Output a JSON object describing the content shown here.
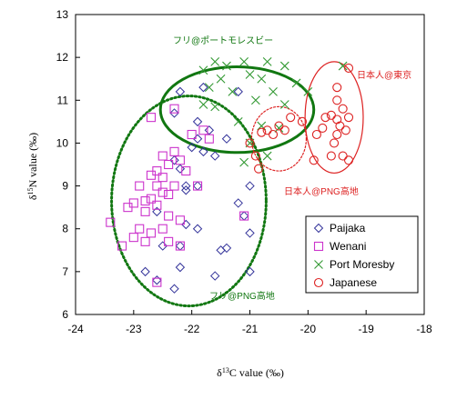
{
  "chart_data": {
    "type": "scatter",
    "xlabel": "δ13C value (‰)",
    "ylabel": "δ15N value (‰)",
    "xlim": [
      -24,
      -18
    ],
    "ylim": [
      6,
      13
    ],
    "xticks": [
      "-24",
      "-23",
      "-22",
      "-21",
      "-20",
      "-19",
      "-18"
    ],
    "yticks": [
      "6",
      "7",
      "8",
      "9",
      "10",
      "11",
      "12",
      "13"
    ],
    "grid": false,
    "legend_position": "bottom-right",
    "colors": {
      "Paijaka": "#33339a",
      "Wenani": "#cc33cc",
      "Port Moresby": "#339933",
      "Japanese": "#dd2222",
      "green_annotation": "#117711",
      "red_annotation": "#dd2222"
    },
    "series": [
      {
        "name": "Paijaka",
        "marker": "diamond",
        "points": [
          [
            -22.3,
            10.7
          ],
          [
            -22.2,
            11.2
          ],
          [
            -21.8,
            11.3
          ],
          [
            -21.2,
            11.2
          ],
          [
            -21.9,
            10.5
          ],
          [
            -21.9,
            10.1
          ],
          [
            -21.7,
            10.3
          ],
          [
            -21.4,
            10.1
          ],
          [
            -22.0,
            9.9
          ],
          [
            -21.8,
            9.8
          ],
          [
            -21.6,
            9.7
          ],
          [
            -22.3,
            9.6
          ],
          [
            -22.2,
            9.4
          ],
          [
            -22.1,
            9.0
          ],
          [
            -21.9,
            9.0
          ],
          [
            -22.1,
            8.9
          ],
          [
            -21.2,
            8.6
          ],
          [
            -21.0,
            9.0
          ],
          [
            -22.6,
            8.4
          ],
          [
            -22.1,
            8.1
          ],
          [
            -21.9,
            8.0
          ],
          [
            -21.1,
            8.3
          ],
          [
            -22.5,
            7.6
          ],
          [
            -22.2,
            7.6
          ],
          [
            -21.5,
            7.5
          ],
          [
            -21.4,
            7.55
          ],
          [
            -21.0,
            7.9
          ],
          [
            -22.2,
            7.1
          ],
          [
            -22.8,
            7.0
          ],
          [
            -22.6,
            6.8
          ],
          [
            -21.6,
            6.9
          ],
          [
            -22.3,
            6.6
          ],
          [
            -21.0,
            7.0
          ]
        ]
      },
      {
        "name": "Wenani",
        "marker": "square",
        "points": [
          [
            -22.7,
            10.6
          ],
          [
            -22.3,
            10.8
          ],
          [
            -22.0,
            10.2
          ],
          [
            -21.8,
            10.3
          ],
          [
            -21.7,
            10.1
          ],
          [
            -22.3,
            9.8
          ],
          [
            -22.5,
            9.7
          ],
          [
            -22.2,
            9.6
          ],
          [
            -22.4,
            9.5
          ],
          [
            -22.1,
            9.35
          ],
          [
            -22.6,
            9.35
          ],
          [
            -22.7,
            9.25
          ],
          [
            -22.5,
            9.2
          ],
          [
            -22.9,
            9.0
          ],
          [
            -22.6,
            9.0
          ],
          [
            -22.3,
            9.0
          ],
          [
            -21.9,
            9.0
          ],
          [
            -22.5,
            8.85
          ],
          [
            -22.4,
            8.8
          ],
          [
            -22.7,
            8.7
          ],
          [
            -23.0,
            8.6
          ],
          [
            -22.8,
            8.65
          ],
          [
            -22.6,
            8.55
          ],
          [
            -23.1,
            8.5
          ],
          [
            -22.8,
            8.4
          ],
          [
            -22.4,
            8.3
          ],
          [
            -22.2,
            8.2
          ],
          [
            -23.4,
            8.15
          ],
          [
            -22.9,
            8.0
          ],
          [
            -22.7,
            7.9
          ],
          [
            -22.5,
            8.0
          ],
          [
            -21.1,
            8.3
          ],
          [
            -23.0,
            7.8
          ],
          [
            -22.8,
            7.7
          ],
          [
            -22.4,
            7.7
          ],
          [
            -22.2,
            7.6
          ],
          [
            -23.2,
            7.6
          ],
          [
            -22.6,
            6.75
          ]
        ]
      },
      {
        "name": "Port Moresby",
        "marker": "cross",
        "points": [
          [
            -21.6,
            11.9
          ],
          [
            -21.4,
            11.8
          ],
          [
            -21.1,
            11.9
          ],
          [
            -20.7,
            11.9
          ],
          [
            -20.4,
            11.8
          ],
          [
            -21.8,
            11.7
          ],
          [
            -21.0,
            11.6
          ],
          [
            -21.5,
            11.5
          ],
          [
            -20.8,
            11.5
          ],
          [
            -20.2,
            11.4
          ],
          [
            -21.7,
            11.3
          ],
          [
            -21.3,
            11.2
          ],
          [
            -20.6,
            11.2
          ],
          [
            -20.0,
            11.2
          ],
          [
            -20.9,
            11.0
          ],
          [
            -20.4,
            10.9
          ],
          [
            -21.8,
            10.9
          ],
          [
            -21.6,
            10.85
          ],
          [
            -21.2,
            10.5
          ],
          [
            -20.8,
            10.4
          ],
          [
            -20.5,
            10.35
          ],
          [
            -21.0,
            10.0
          ],
          [
            -20.7,
            9.7
          ],
          [
            -21.1,
            9.55
          ],
          [
            -19.4,
            11.8
          ]
        ]
      },
      {
        "name": "Japanese",
        "marker": "circle",
        "points": [
          [
            -19.3,
            11.75
          ],
          [
            -19.5,
            11.3
          ],
          [
            -19.5,
            11.0
          ],
          [
            -19.4,
            10.8
          ],
          [
            -19.3,
            10.6
          ],
          [
            -19.6,
            10.65
          ],
          [
            -19.5,
            10.55
          ],
          [
            -19.7,
            10.6
          ],
          [
            -19.45,
            10.4
          ],
          [
            -19.75,
            10.35
          ],
          [
            -19.85,
            10.2
          ],
          [
            -19.5,
            10.2
          ],
          [
            -19.35,
            10.3
          ],
          [
            -19.55,
            10.0
          ],
          [
            -19.4,
            9.7
          ],
          [
            -19.3,
            9.6
          ],
          [
            -19.6,
            9.7
          ],
          [
            -20.3,
            10.6
          ],
          [
            -20.1,
            10.5
          ],
          [
            -20.5,
            10.4
          ],
          [
            -20.4,
            10.3
          ],
          [
            -20.6,
            10.2
          ],
          [
            -20.8,
            10.25
          ],
          [
            -20.7,
            10.3
          ],
          [
            -21.0,
            10.0
          ],
          [
            -20.9,
            9.7
          ],
          [
            -20.85,
            9.4
          ],
          [
            -19.9,
            9.6
          ]
        ]
      }
    ],
    "ellipses": [
      {
        "label": "フリ@ポートモレスビー",
        "color": "#117711",
        "style": "solid",
        "cx": -21.22,
        "cy": 10.78,
        "rx": 1.32,
        "ry": 1.0
      },
      {
        "label": "フリ@PNG高地",
        "color": "#117711",
        "style": "dotted",
        "cx": -22.05,
        "cy": 8.65,
        "rx": 1.33,
        "ry": 2.45
      },
      {
        "label": "日本人@PNG高地",
        "color": "#dd2222",
        "style": "dotted",
        "cx": -20.5,
        "cy": 10.1,
        "rx": 0.47,
        "ry": 0.75
      },
      {
        "label": "日本人@東京",
        "color": "#dd2222",
        "style": "solid",
        "cx": -19.55,
        "cy": 10.6,
        "rx": 0.5,
        "ry": 1.3
      }
    ],
    "annotations": [
      {
        "text": "フリ@ポートモレスビー",
        "color": "#117711"
      },
      {
        "text": "日本人@東京",
        "color": "#dd2222"
      },
      {
        "text": "日本人@PNG高地",
        "color": "#dd2222"
      },
      {
        "text": "フリ@PNG高地",
        "color": "#117711"
      }
    ]
  }
}
